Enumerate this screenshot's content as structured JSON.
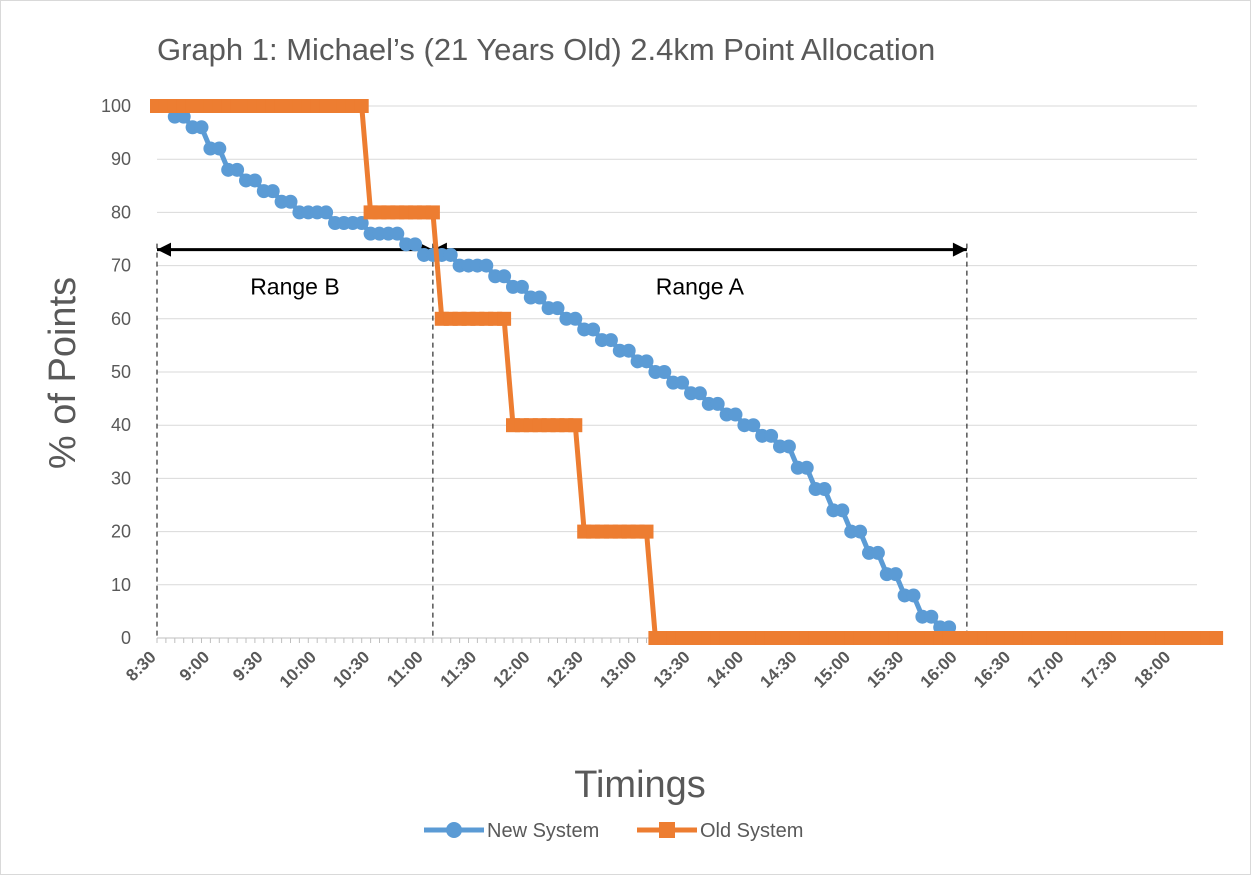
{
  "chart_data": {
    "type": "line",
    "title": "Graph 1: Michael’s (21 Years Old) 2.4km Point Allocation",
    "xlabel": "Timings",
    "ylabel": "% of Points",
    "ylim": [
      0,
      100
    ],
    "y_ticks": [
      "0",
      "10",
      "20",
      "30",
      "40",
      "50",
      "60",
      "70",
      "80",
      "90",
      "100"
    ],
    "x_tick_labels": [
      "8:30",
      "9:00",
      "9:30",
      "10:00",
      "10:30",
      "11:00",
      "11:30",
      "12:00",
      "12:30",
      "13:00",
      "13:30",
      "14:00",
      "14:30",
      "15:00",
      "15:30",
      "16:00",
      "16:30",
      "17:00",
      "17:30",
      "18:00"
    ],
    "x_step": "0:05",
    "grid": true,
    "legend_position": "bottom",
    "series": [
      {
        "name": "New System",
        "color": "#5B9BD5",
        "marker": "circle",
        "x": [
          "8:40",
          "8:45",
          "8:50",
          "8:55",
          "9:00",
          "9:05",
          "9:10",
          "9:15",
          "9:20",
          "9:25",
          "9:30",
          "9:35",
          "9:40",
          "9:45",
          "9:50",
          "9:55",
          "10:00",
          "10:05",
          "10:10",
          "10:15",
          "10:20",
          "10:25",
          "10:30",
          "10:35",
          "10:40",
          "10:45",
          "10:50",
          "10:55",
          "11:00",
          "11:05",
          "11:10",
          "11:15",
          "11:20",
          "11:25",
          "11:30",
          "11:35",
          "11:40",
          "11:45",
          "11:50",
          "11:55",
          "12:00",
          "12:05",
          "12:10",
          "12:15",
          "12:20",
          "12:25",
          "12:30",
          "12:35",
          "12:40",
          "12:45",
          "12:50",
          "12:55",
          "13:00",
          "13:05",
          "13:10",
          "13:15",
          "13:20",
          "13:25",
          "13:30",
          "13:35",
          "13:40",
          "13:45",
          "13:50",
          "13:55",
          "14:00",
          "14:05",
          "14:10",
          "14:15",
          "14:20",
          "14:25",
          "14:30",
          "14:35",
          "14:40",
          "14:45",
          "14:50",
          "14:55",
          "15:00",
          "15:05",
          "15:10",
          "15:15",
          "15:20",
          "15:25",
          "15:30",
          "15:35",
          "15:40",
          "15:45",
          "15:50",
          "15:55",
          "16:00"
        ],
        "values": [
          98,
          98,
          96,
          96,
          92,
          92,
          88,
          88,
          86,
          86,
          84,
          84,
          82,
          82,
          80,
          80,
          80,
          80,
          78,
          78,
          78,
          78,
          76,
          76,
          76,
          76,
          74,
          74,
          72,
          72,
          72,
          72,
          70,
          70,
          70,
          70,
          68,
          68,
          66,
          66,
          64,
          64,
          62,
          62,
          60,
          60,
          58,
          58,
          56,
          56,
          54,
          54,
          52,
          52,
          50,
          50,
          48,
          48,
          46,
          46,
          44,
          44,
          42,
          42,
          40,
          40,
          38,
          38,
          36,
          36,
          32,
          32,
          28,
          28,
          24,
          24,
          20,
          20,
          16,
          16,
          12,
          12,
          8,
          8,
          4,
          4,
          2,
          2,
          0
        ]
      },
      {
        "name": "Old System",
        "color": "#ED7D31",
        "marker": "square",
        "x": [
          "8:30",
          "8:35",
          "8:40",
          "8:45",
          "8:50",
          "8:55",
          "9:00",
          "9:05",
          "9:10",
          "9:15",
          "9:20",
          "9:25",
          "9:30",
          "9:35",
          "9:40",
          "9:45",
          "9:50",
          "9:55",
          "10:00",
          "10:05",
          "10:10",
          "10:15",
          "10:20",
          "10:25",
          "10:30",
          "10:35",
          "10:40",
          "10:45",
          "10:50",
          "10:55",
          "11:00",
          "11:05",
          "11:10",
          "11:15",
          "11:20",
          "11:25",
          "11:30",
          "11:35",
          "11:40",
          "11:45",
          "11:50",
          "11:55",
          "12:00",
          "12:05",
          "12:10",
          "12:15",
          "12:20",
          "12:25",
          "12:30",
          "12:35",
          "12:40",
          "12:45",
          "12:50",
          "12:55",
          "13:00",
          "13:05",
          "13:10",
          "13:15",
          "13:20",
          "13:25",
          "13:30",
          "13:35",
          "13:40",
          "13:45",
          "13:50",
          "13:55",
          "14:00",
          "14:05",
          "14:10",
          "14:15",
          "14:20",
          "14:25",
          "14:30",
          "14:35",
          "14:40",
          "14:45",
          "14:50",
          "14:55",
          "15:00",
          "15:05",
          "15:10",
          "15:15",
          "15:20",
          "15:25",
          "15:30",
          "15:35",
          "15:40",
          "15:45",
          "15:50",
          "15:55",
          "16:00",
          "16:05",
          "16:10",
          "16:15",
          "16:20",
          "16:25",
          "16:30",
          "16:35",
          "16:40",
          "16:45",
          "16:50",
          "16:55",
          "17:00",
          "17:05",
          "17:10",
          "17:15",
          "17:20",
          "17:25",
          "17:30",
          "17:35",
          "17:40",
          "17:45",
          "17:50",
          "17:55",
          "18:00",
          "18:05",
          "18:10",
          "18:15",
          "18:20",
          "18:25"
        ],
        "values": [
          100,
          100,
          100,
          100,
          100,
          100,
          100,
          100,
          100,
          100,
          100,
          100,
          100,
          100,
          100,
          100,
          100,
          100,
          100,
          100,
          100,
          100,
          100,
          100,
          80,
          80,
          80,
          80,
          80,
          80,
          80,
          80,
          60,
          60,
          60,
          60,
          60,
          60,
          60,
          60,
          40,
          40,
          40,
          40,
          40,
          40,
          40,
          40,
          20,
          20,
          20,
          20,
          20,
          20,
          20,
          20,
          0,
          0,
          0,
          0,
          0,
          0,
          0,
          0,
          0,
          0,
          0,
          0,
          0,
          0,
          0,
          0,
          0,
          0,
          0,
          0,
          0,
          0,
          0,
          0,
          0,
          0,
          0,
          0,
          0,
          0,
          0,
          0,
          0,
          0,
          0,
          0,
          0,
          0,
          0,
          0,
          0,
          0,
          0,
          0,
          0,
          0,
          0,
          0,
          0,
          0,
          0,
          0,
          0,
          0,
          0,
          0,
          0,
          0,
          0,
          0,
          0,
          0,
          0,
          0
        ]
      }
    ],
    "annotations": [
      {
        "label": "Range B",
        "from": "8:30",
        "to": "11:05",
        "at_y": 73
      },
      {
        "label": "Range A",
        "from": "11:05",
        "to": "16:05",
        "at_y": 73
      }
    ]
  }
}
